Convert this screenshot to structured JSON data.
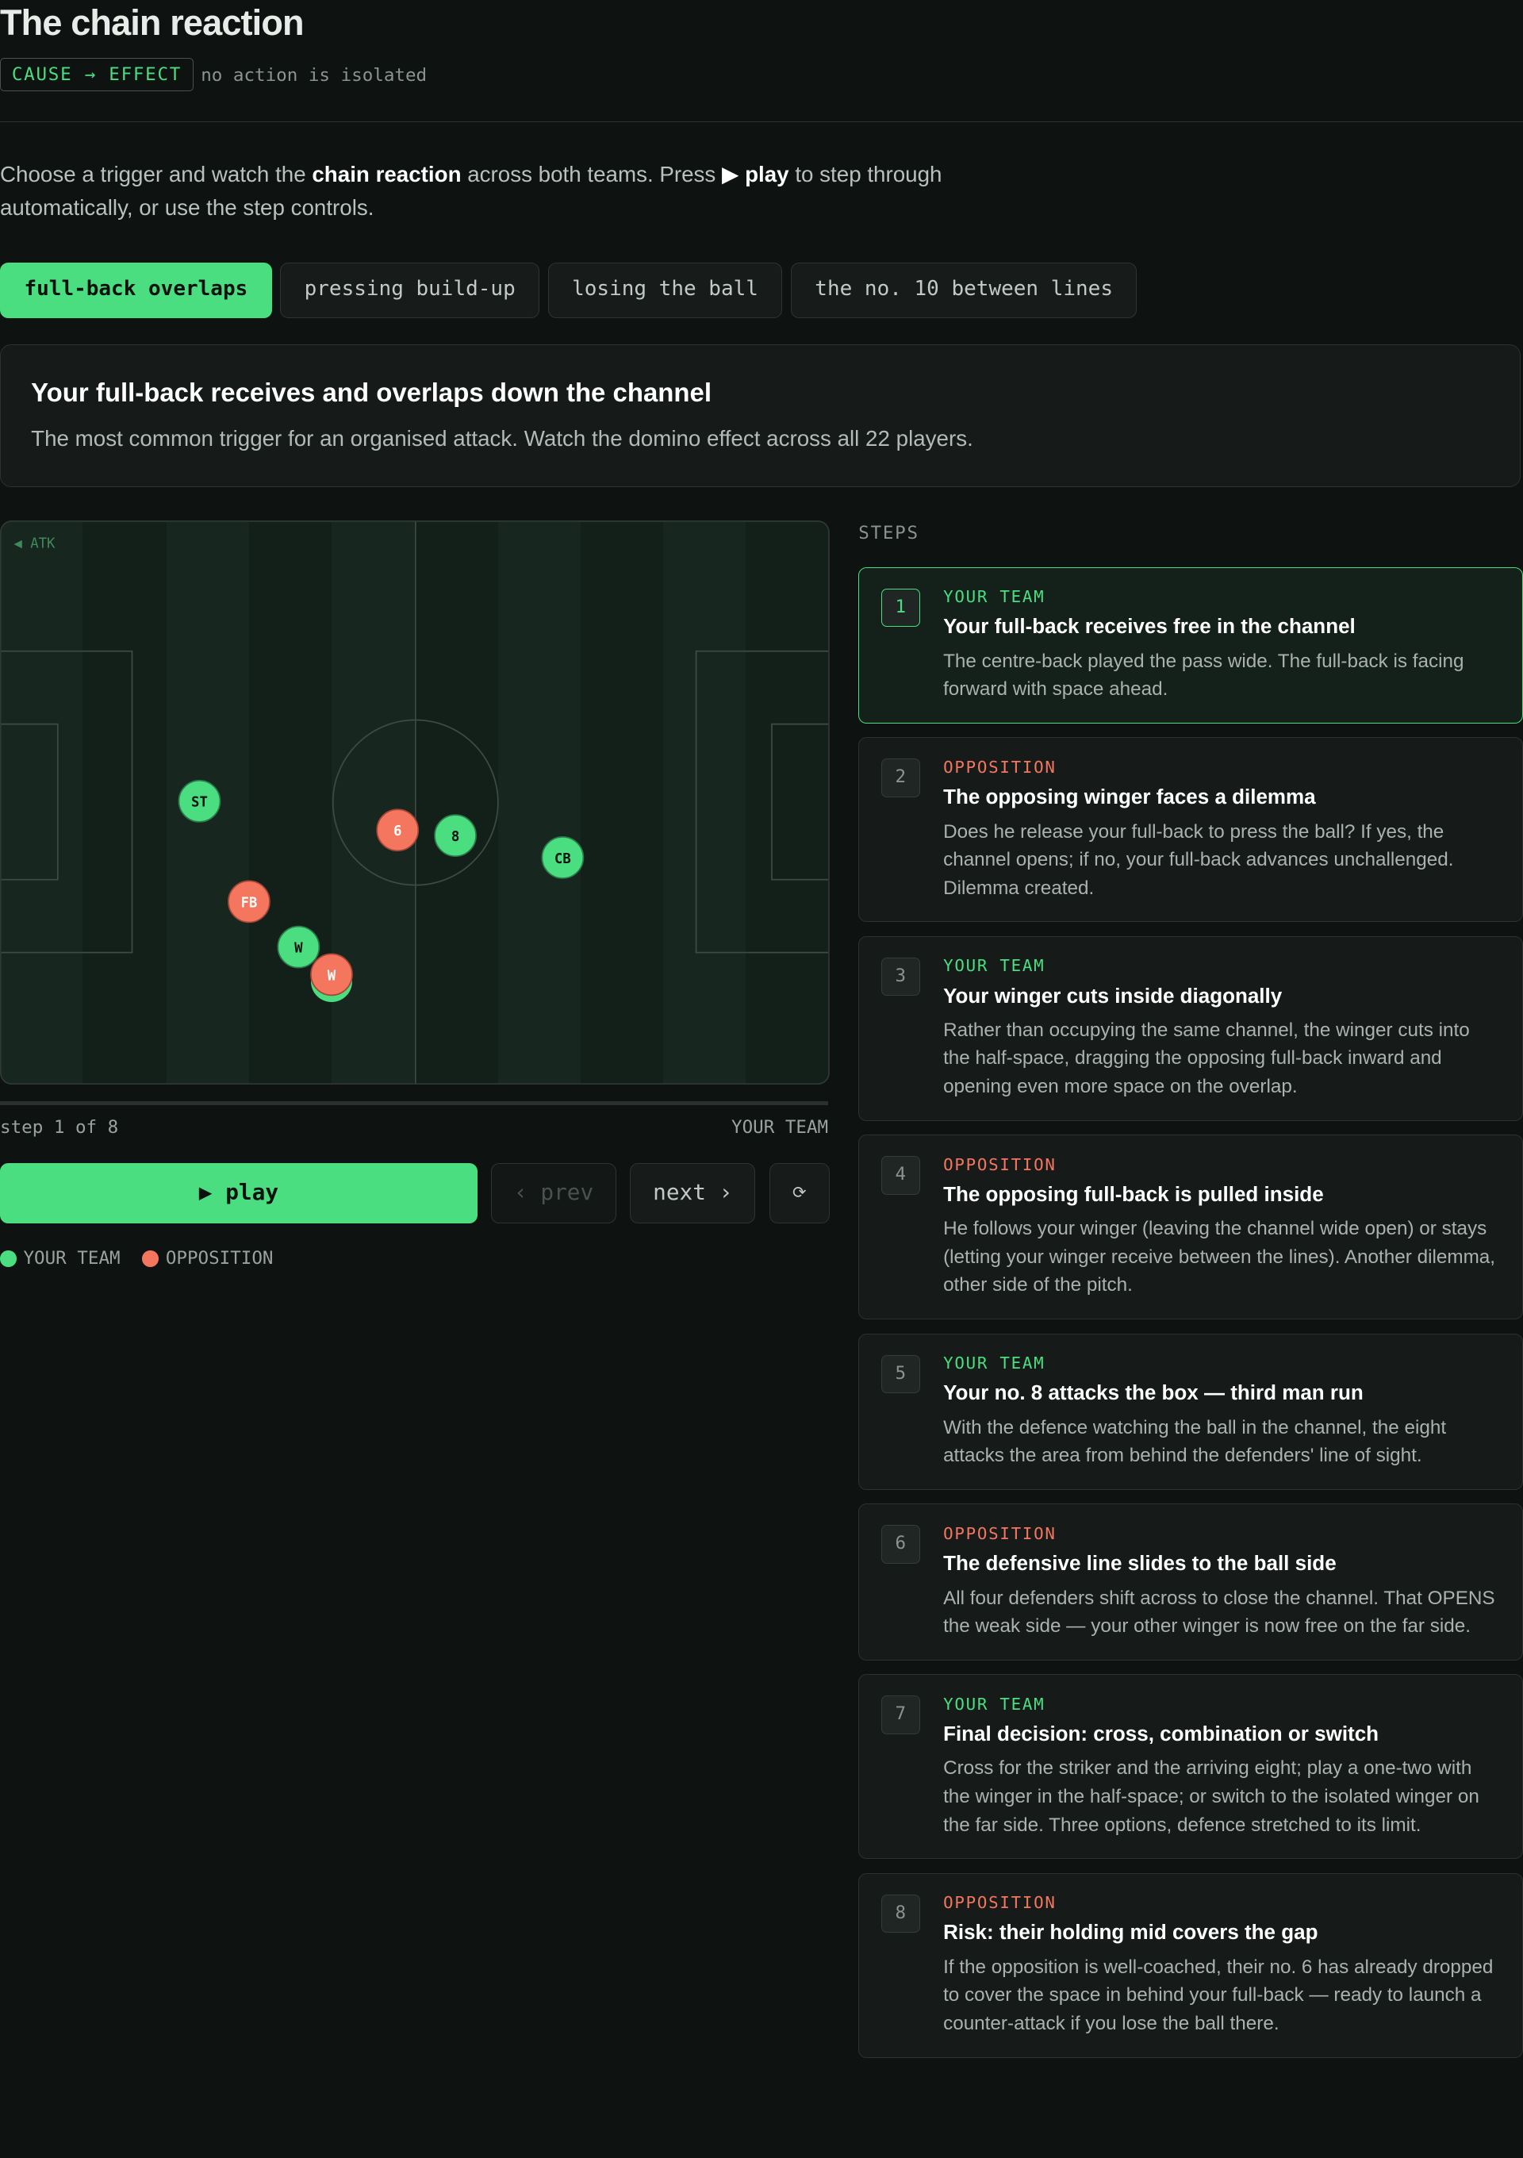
{
  "header": {
    "title": "The chain reaction",
    "badge": "CAUSE → EFFECT",
    "tagline": "no action is isolated"
  },
  "intro": {
    "parts": [
      "Choose a trigger and watch the ",
      "chain reaction",
      " across both teams. Press ",
      "▶ play",
      " to step through automatically, or use the step controls."
    ]
  },
  "tabs": [
    "full-back overlaps",
    "pressing build-up",
    "losing the ball",
    "the no. 10 between lines"
  ],
  "scenario": {
    "title": "Your full-back receives and overlaps down the channel",
    "description": "The most common trigger for an organised attack. Watch the domino effect across all 22 players."
  },
  "pitch": {
    "direction": "◀ ATK",
    "players": [
      "ST",
      "FB",
      "W",
      "W",
      "6",
      "8",
      "CB"
    ]
  },
  "progress": {
    "label": "step 1 of 8",
    "team": "YOUR TEAM"
  },
  "controls": {
    "play": "▶ play",
    "prev": "‹ prev",
    "next": "next ›",
    "reset": "⟳"
  },
  "legend": [
    "YOUR TEAM",
    "OPPOSITION"
  ],
  "steps_heading": "STEPS",
  "steps": [
    {
      "number": "1",
      "team": "YOUR TEAM",
      "title": "Your full-back receives free in the channel",
      "text": "The centre-back played the pass wide. The full-back is facing forward with space ahead."
    },
    {
      "number": "2",
      "team": "OPPOSITION",
      "title": "The opposing winger faces a dilemma",
      "text": "Does he release your full-back to press the ball? If yes, the channel opens; if no, your full-back advances unchallenged. Dilemma created."
    },
    {
      "number": "3",
      "team": "YOUR TEAM",
      "title": "Your winger cuts inside diagonally",
      "text": "Rather than occupying the same channel, the winger cuts into the half-space, dragging the opposing full-back inward and opening even more space on the overlap."
    },
    {
      "number": "4",
      "team": "OPPOSITION",
      "title": "The opposing full-back is pulled inside",
      "text": "He follows your winger (leaving the channel wide open) or stays (letting your winger receive between the lines). Another dilemma, other side of the pitch."
    },
    {
      "number": "5",
      "team": "YOUR TEAM",
      "title": "Your no. 8 attacks the box — third man run",
      "text": "With the defence watching the ball in the channel, the eight attacks the area from behind the defenders' line of sight."
    },
    {
      "number": "6",
      "team": "OPPOSITION",
      "title": "The defensive line slides to the ball side",
      "text": "All four defenders shift across to close the channel. That OPENS the weak side — your other winger is now free on the far side."
    },
    {
      "number": "7",
      "team": "YOUR TEAM",
      "title": "Final decision: cross, combination or switch",
      "text": "Cross for the striker and the arriving eight; play a one-two with the winger in the half-space; or switch to the isolated winger on the far side. Three options, defence stretched to its limit."
    },
    {
      "number": "8",
      "team": "OPPOSITION",
      "title": "Risk: their holding mid covers the gap",
      "text": "If the opposition is well-coached, their no. 6 has already dropped to cover the space in behind your full-back — ready to launch a counter-attack if you lose the ball there."
    }
  ]
}
